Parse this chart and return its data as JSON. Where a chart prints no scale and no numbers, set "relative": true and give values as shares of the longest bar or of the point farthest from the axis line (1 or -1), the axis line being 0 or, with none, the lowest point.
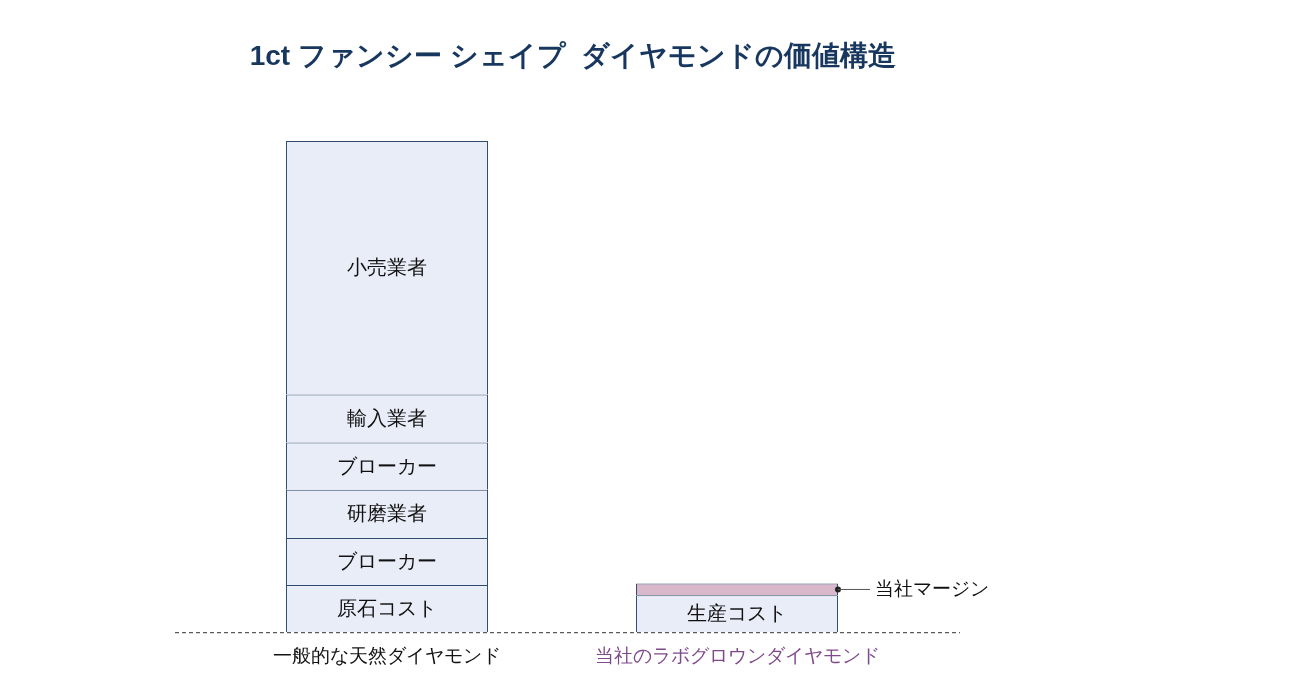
{
  "chart_data": {
    "type": "bar",
    "title": "1ct ファンシー シェイプ  ダイヤモンドの価値構造",
    "categories": [
      "一般的な天然ダイヤモンド",
      "当社のラボグロウンダイヤモンド"
    ],
    "stacked": true,
    "relative": true,
    "legend": false,
    "grid": false,
    "series": [
      {
        "name": "原石コスト",
        "color": "#e9edf7",
        "values": [
          0.096,
          null
        ]
      },
      {
        "name": "ブローカー",
        "color": "#e9edf7",
        "values": [
          0.096,
          null
        ]
      },
      {
        "name": "研磨業者",
        "color": "#e9edf7",
        "values": [
          0.098,
          null
        ]
      },
      {
        "name": "ブローカー",
        "color": "#e9edf7",
        "values": [
          0.096,
          null
        ]
      },
      {
        "name": "輸入業者",
        "color": "#e9edf7",
        "values": [
          0.098,
          null
        ]
      },
      {
        "name": "小売業者",
        "color": "#e9edf7",
        "values": [
          0.516,
          null
        ]
      },
      {
        "name": "生産コスト",
        "color": "#e9edf7",
        "values": [
          null,
          0.075
        ]
      },
      {
        "name": "当社マージン",
        "color": "#d9b8cc",
        "values": [
          null,
          0.024
        ]
      }
    ]
  }
}
